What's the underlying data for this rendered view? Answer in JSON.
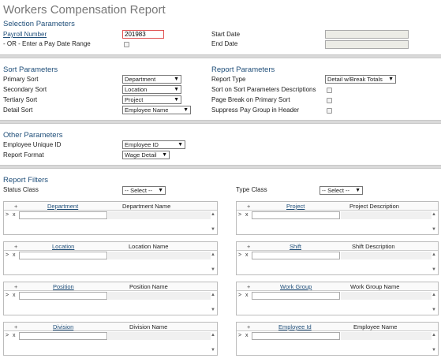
{
  "page_title": "Workers Compensation Report",
  "selection": {
    "heading": "Selection Parameters",
    "payroll_number_label": "Payroll Number",
    "payroll_number_value": "201983",
    "or_label": "- OR - Enter a Pay Date Range",
    "start_date_label": "Start Date",
    "end_date_label": "End Date"
  },
  "sort": {
    "heading": "Sort Parameters",
    "primary_label": "Primary Sort",
    "primary_value": "Department",
    "secondary_label": "Secondary Sort",
    "secondary_value": "Location",
    "tertiary_label": "Tertiary Sort",
    "tertiary_value": "Project",
    "detail_label": "Detail Sort",
    "detail_value": "Employee Name"
  },
  "report_params": {
    "heading": "Report Parameters",
    "report_type_label": "Report Type",
    "report_type_value": "Detail w/Break Totals",
    "sort_desc_label": "Sort on Sort Parameters Descriptions",
    "page_break_label": "Page Break on Primary Sort",
    "suppress_label": "Suppress Pay Group in Header"
  },
  "other": {
    "heading": "Other Parameters",
    "emp_unique_label": "Employee Unique ID",
    "emp_unique_value": "Employee ID",
    "report_format_label": "Report Format",
    "report_format_value": "Wage Detail"
  },
  "filters": {
    "heading": "Report Filters",
    "status_class_label": "Status Class",
    "status_class_value": "-- Select --",
    "type_class_label": "Type Class",
    "type_class_value": "-- Select --",
    "grid_plus": "+",
    "row_gt": ">",
    "row_x": "x",
    "grids": {
      "department": {
        "col1": "Department",
        "col2": "Department Name"
      },
      "project": {
        "col1": "Project",
        "col2": "Project Description"
      },
      "location": {
        "col1": "Location",
        "col2": "Location Name"
      },
      "shift": {
        "col1": "Shift",
        "col2": "Shift Description"
      },
      "position": {
        "col1": "Position",
        "col2": "Position Name"
      },
      "workgroup": {
        "col1": "Work Group",
        "col2": "Work Group Name"
      },
      "division": {
        "col1": "Division",
        "col2": "Division Name"
      },
      "employee": {
        "col1": "Employee Id",
        "col2": "Employee Name"
      }
    }
  },
  "icons": {
    "dropdown_arrow": "▼",
    "scroll_up": "▲",
    "scroll_down": "▼"
  }
}
